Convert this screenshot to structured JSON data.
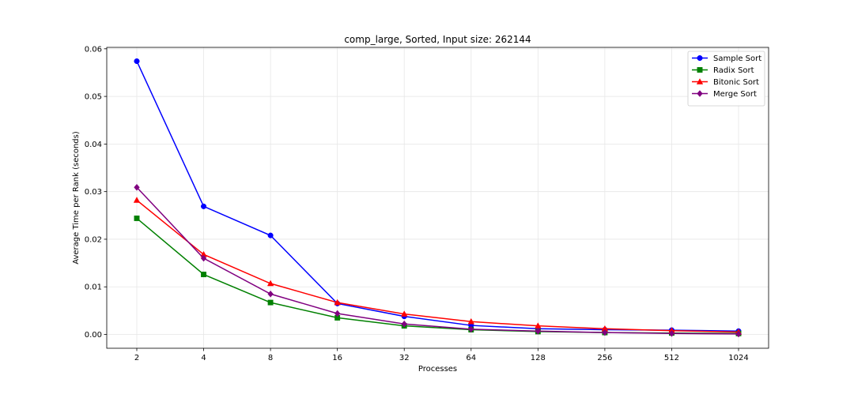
{
  "chart_data": {
    "type": "line",
    "title": "comp_large, Sorted, Input size: 262144",
    "xlabel": "Processes",
    "ylabel": "Average Time per Rank (seconds)",
    "categories": [
      "2",
      "4",
      "8",
      "16",
      "32",
      "64",
      "128",
      "256",
      "512",
      "1024"
    ],
    "ylim": [
      -0.0029,
      0.0603
    ],
    "yticks": [
      0.0,
      0.01,
      0.02,
      0.03,
      0.04,
      0.05,
      0.06
    ],
    "ytick_labels": [
      "0.00",
      "0.01",
      "0.02",
      "0.03",
      "0.04",
      "0.05",
      "0.06"
    ],
    "grid": true,
    "legend_position": "top-right",
    "series": [
      {
        "name": "Sample Sort",
        "color": "#0000ff",
        "marker": "circle",
        "values": [
          0.0574,
          0.0269,
          0.0208,
          0.0065,
          0.0038,
          0.0019,
          0.0012,
          0.001,
          0.0009,
          0.0007
        ]
      },
      {
        "name": "Radix Sort",
        "color": "#008000",
        "marker": "square",
        "values": [
          0.0244,
          0.0126,
          0.0067,
          0.0035,
          0.0018,
          0.001,
          0.0006,
          0.0004,
          0.0003,
          0.0002
        ]
      },
      {
        "name": "Bitonic Sort",
        "color": "#ff0000",
        "marker": "triangle",
        "values": [
          0.0282,
          0.0168,
          0.0107,
          0.0067,
          0.0043,
          0.0027,
          0.0018,
          0.0012,
          0.0008,
          0.0005
        ]
      },
      {
        "name": "Merge Sort",
        "color": "#800080",
        "marker": "diamond",
        "values": [
          0.0309,
          0.016,
          0.0085,
          0.0044,
          0.0022,
          0.0011,
          0.0007,
          0.0004,
          0.0002,
          0.0001
        ]
      }
    ]
  }
}
